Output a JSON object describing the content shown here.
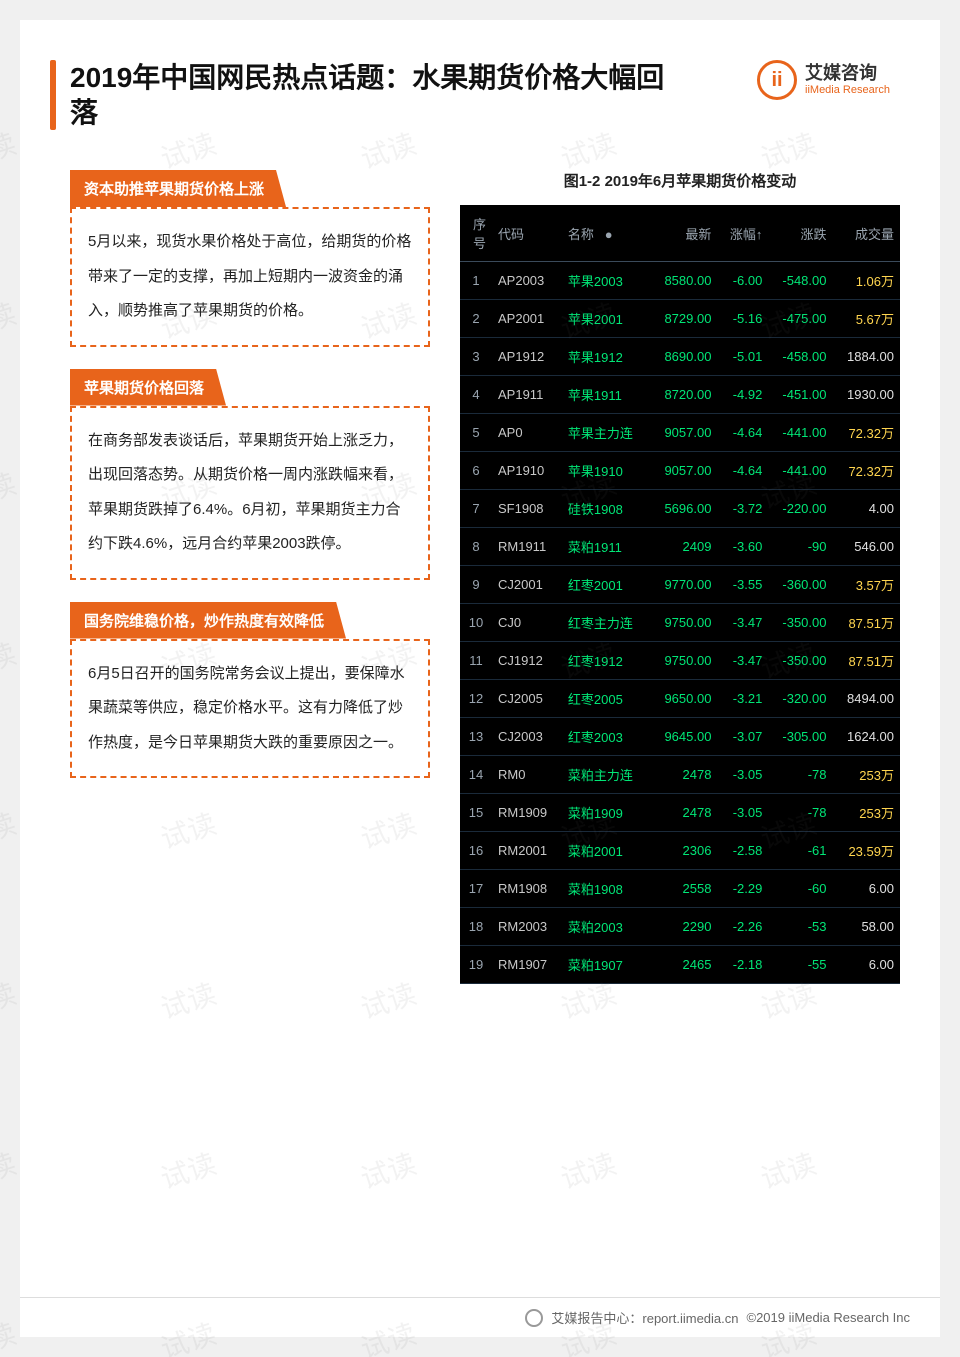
{
  "header": {
    "title": "2019年中国网民热点话题：水果期货价格大幅回落",
    "logo_cn": "艾媒咨询",
    "logo_en": "iiMedia Research",
    "title_bar_color": "#e8641b"
  },
  "watermark_text": "试读",
  "boxes": [
    {
      "title": "资本助推苹果期货价格上涨",
      "body": "5月以来，现货水果价格处于高位，给期货的价格带来了一定的支撑，再加上短期内一波资金的涌入，顺势推高了苹果期货的价格。"
    },
    {
      "title": "苹果期货价格回落",
      "body": "在商务部发表谈话后，苹果期货开始上涨乏力，出现回落态势。从期货价格一周内涨跌幅来看，苹果期货跌掉了6.4%。6月初，苹果期货主力合约下跌4.6%，远月合约苹果2003跌停。"
    },
    {
      "title": "国务院维稳价格，炒作热度有效降低",
      "body": "6月5日召开的国务院常务会议上提出，要保障水果蔬菜等供应，稳定价格水平。这有力降低了炒作热度，是今日苹果期货大跌的重要原因之一。"
    }
  ],
  "chart": {
    "title": "图1-2 2019年6月苹果期货价格变动",
    "columns": [
      "序号",
      "代码",
      "名称",
      "●",
      "最新",
      "涨幅↑",
      "涨跌",
      "成交量"
    ],
    "background_color": "#000000",
    "header_text_color": "#9aa5b0",
    "grid_color": "#1a2a3a",
    "positive_color": "#ff4d4d",
    "negative_color": "#00e676",
    "volume_wan_color": "#ffd54f",
    "text_color": "#e0e0e0",
    "font_size": 13,
    "rows": [
      {
        "seq": 1,
        "code": "AP2003",
        "name": "苹果2003",
        "latest": "8580.00",
        "pct": "-6.00",
        "chg": "-548.00",
        "vol": "1.06万",
        "wan": true
      },
      {
        "seq": 2,
        "code": "AP2001",
        "name": "苹果2001",
        "latest": "8729.00",
        "pct": "-5.16",
        "chg": "-475.00",
        "vol": "5.67万",
        "wan": true
      },
      {
        "seq": 3,
        "code": "AP1912",
        "name": "苹果1912",
        "latest": "8690.00",
        "pct": "-5.01",
        "chg": "-458.00",
        "vol": "1884.00",
        "wan": false
      },
      {
        "seq": 4,
        "code": "AP1911",
        "name": "苹果1911",
        "latest": "8720.00",
        "pct": "-4.92",
        "chg": "-451.00",
        "vol": "1930.00",
        "wan": false
      },
      {
        "seq": 5,
        "code": "AP0",
        "name": "苹果主力连",
        "latest": "9057.00",
        "pct": "-4.64",
        "chg": "-441.00",
        "vol": "72.32万",
        "wan": true
      },
      {
        "seq": 6,
        "code": "AP1910",
        "name": "苹果1910",
        "latest": "9057.00",
        "pct": "-4.64",
        "chg": "-441.00",
        "vol": "72.32万",
        "wan": true
      },
      {
        "seq": 7,
        "code": "SF1908",
        "name": "硅铁1908",
        "latest": "5696.00",
        "pct": "-3.72",
        "chg": "-220.00",
        "vol": "4.00",
        "wan": false
      },
      {
        "seq": 8,
        "code": "RM1911",
        "name": "菜粕1911",
        "latest": "2409",
        "pct": "-3.60",
        "chg": "-90",
        "vol": "546.00",
        "wan": false
      },
      {
        "seq": 9,
        "code": "CJ2001",
        "name": "红枣2001",
        "latest": "9770.00",
        "pct": "-3.55",
        "chg": "-360.00",
        "vol": "3.57万",
        "wan": true
      },
      {
        "seq": 10,
        "code": "CJ0",
        "name": "红枣主力连",
        "latest": "9750.00",
        "pct": "-3.47",
        "chg": "-350.00",
        "vol": "87.51万",
        "wan": true
      },
      {
        "seq": 11,
        "code": "CJ1912",
        "name": "红枣1912",
        "latest": "9750.00",
        "pct": "-3.47",
        "chg": "-350.00",
        "vol": "87.51万",
        "wan": true
      },
      {
        "seq": 12,
        "code": "CJ2005",
        "name": "红枣2005",
        "latest": "9650.00",
        "pct": "-3.21",
        "chg": "-320.00",
        "vol": "8494.00",
        "wan": false
      },
      {
        "seq": 13,
        "code": "CJ2003",
        "name": "红枣2003",
        "latest": "9645.00",
        "pct": "-3.07",
        "chg": "-305.00",
        "vol": "1624.00",
        "wan": false
      },
      {
        "seq": 14,
        "code": "RM0",
        "name": "菜粕主力连",
        "latest": "2478",
        "pct": "-3.05",
        "chg": "-78",
        "vol": "253万",
        "wan": true
      },
      {
        "seq": 15,
        "code": "RM1909",
        "name": "菜粕1909",
        "latest": "2478",
        "pct": "-3.05",
        "chg": "-78",
        "vol": "253万",
        "wan": true
      },
      {
        "seq": 16,
        "code": "RM2001",
        "name": "菜粕2001",
        "latest": "2306",
        "pct": "-2.58",
        "chg": "-61",
        "vol": "23.59万",
        "wan": true
      },
      {
        "seq": 17,
        "code": "RM1908",
        "name": "菜粕1908",
        "latest": "2558",
        "pct": "-2.29",
        "chg": "-60",
        "vol": "6.00",
        "wan": false
      },
      {
        "seq": 18,
        "code": "RM2003",
        "name": "菜粕2003",
        "latest": "2290",
        "pct": "-2.26",
        "chg": "-53",
        "vol": "58.00",
        "wan": false
      },
      {
        "seq": 19,
        "code": "RM1907",
        "name": "菜粕1907",
        "latest": "2465",
        "pct": "-2.18",
        "chg": "-55",
        "vol": "6.00",
        "wan": false
      }
    ]
  },
  "footer": {
    "source": "艾媒报告中心：report.iimedia.cn",
    "copyright": "©2019  iiMedia Research Inc"
  }
}
